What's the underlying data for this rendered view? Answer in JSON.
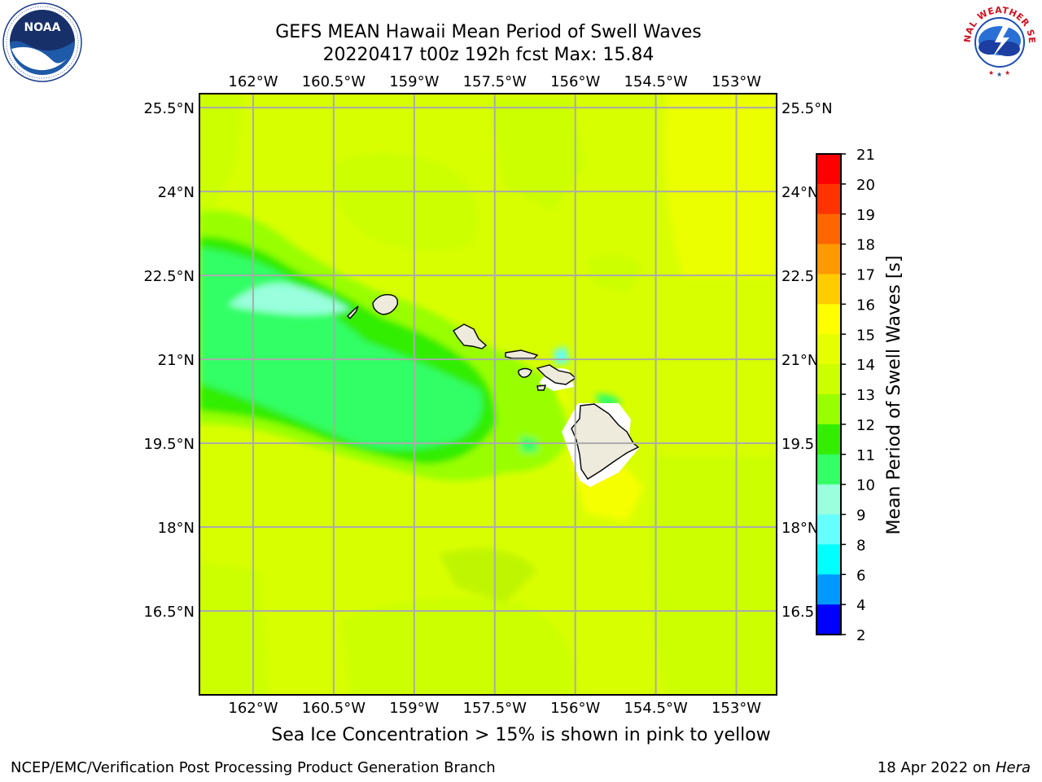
{
  "title": {
    "line1": "GEFS MEAN Hawaii Mean Period of Swell Waves",
    "line2": "20220417 t00z 192h fcst   Max: 15.84"
  },
  "map": {
    "lon_ticks": [
      "162°W",
      "160.5°W",
      "159°W",
      "157.5°W",
      "156°W",
      "154.5°W",
      "153°W"
    ],
    "lon_values": [
      -162,
      -160.5,
      -159,
      -157.5,
      -156,
      -154.5,
      -153
    ],
    "lat_ticks": [
      "25.5°N",
      "24°N",
      "22.5°N",
      "21°N",
      "19.5°N",
      "18°N",
      "16.5°N"
    ],
    "lat_values": [
      25.5,
      24,
      22.5,
      21,
      19.5,
      18,
      16.5
    ],
    "lon_range": [
      -163,
      -152.25
    ],
    "lat_range": [
      15,
      25.75
    ],
    "land_color": "#eeeadc",
    "grid": true
  },
  "colorbar": {
    "label": "Mean Period of Swell Waves [s]",
    "ticks": [
      "21",
      "20",
      "19",
      "18",
      "17",
      "16",
      "15",
      "14",
      "13",
      "12",
      "11",
      "10",
      "9",
      "8",
      "6",
      "4",
      "2"
    ],
    "colors_top_to_bottom": [
      "#ff0000",
      "#ff3300",
      "#ff6600",
      "#ff9900",
      "#ffcc00",
      "#ffff00",
      "#e6ff00",
      "#ccff00",
      "#99ff00",
      "#33ee00",
      "#33ff66",
      "#99ffdd",
      "#66ffff",
      "#00ffff",
      "#0099ff",
      "#0000ff"
    ]
  },
  "caption": "Sea Ice Concentration > 15% is shown in pink to yellow",
  "footer": {
    "left": "NCEP/EMC/Verification Post Processing Product Generation Branch",
    "right_date": "18 Apr 2022 on ",
    "right_host": "Hera"
  },
  "logos": {
    "left_name": "NOAA",
    "right_name": "NATIONAL WEATHER SERVICE"
  }
}
